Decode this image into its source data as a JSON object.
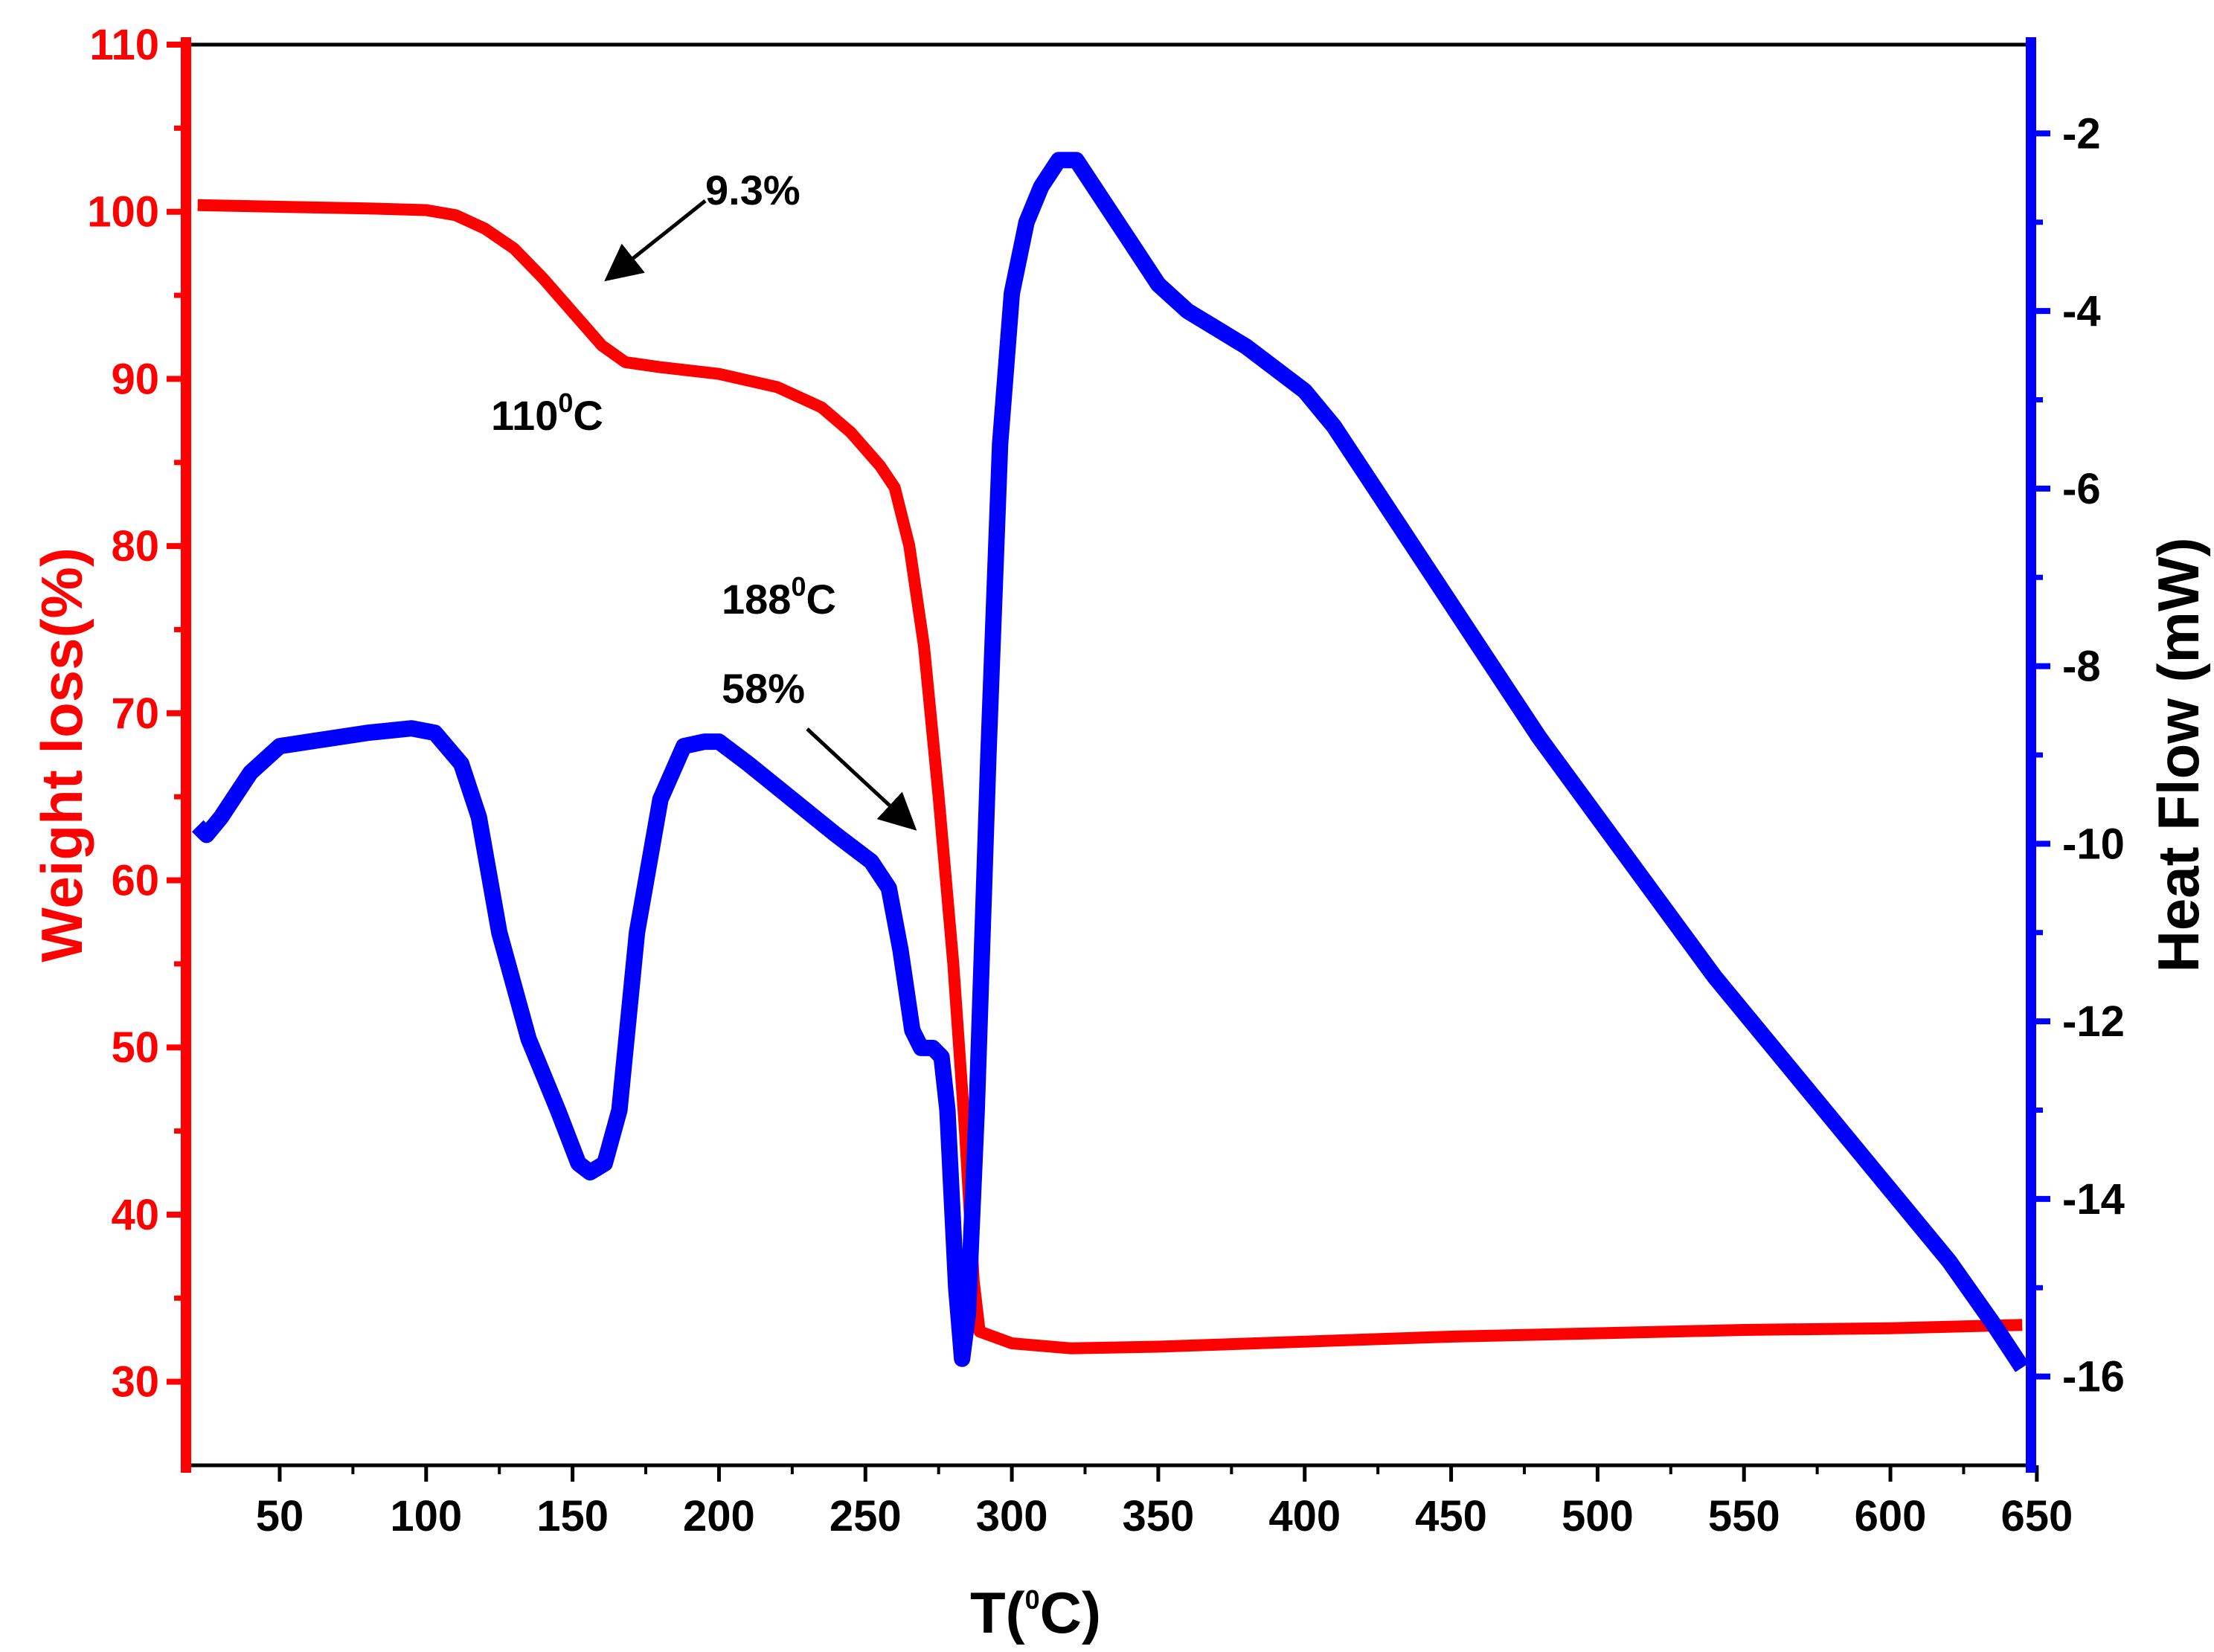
{
  "chart_data": {
    "type": "line",
    "title": "",
    "xlabel": {
      "prefix": "T(",
      "sup": "0",
      "suffix": "C)"
    },
    "y_left_label": "Weight loss(%)",
    "y_right_label": "Heat Flow (mW)",
    "xlim": [
      18,
      648
    ],
    "y_left_lim": [
      25,
      110
    ],
    "y_right_lim": [
      -17,
      -1
    ],
    "x_ticks": [
      50,
      100,
      150,
      200,
      250,
      300,
      350,
      400,
      450,
      500,
      550,
      600,
      650
    ],
    "y_left_ticks": [
      30,
      40,
      50,
      60,
      70,
      80,
      90,
      100,
      110
    ],
    "y_right_ticks": [
      -16,
      -14,
      -12,
      -10,
      -8,
      -6,
      -4,
      -2
    ],
    "colors": {
      "weight": "#ff0000",
      "heat": "#0000ff",
      "text": "#000000"
    },
    "series": [
      {
        "name": "Weight loss",
        "axis": "left",
        "color": "#ff0000",
        "points": [
          [
            22,
            100.4
          ],
          [
            50,
            100.3
          ],
          [
            80,
            100.2
          ],
          [
            100,
            100.1
          ],
          [
            110,
            99.8
          ],
          [
            120,
            99.0
          ],
          [
            130,
            97.8
          ],
          [
            140,
            96.0
          ],
          [
            150,
            94.0
          ],
          [
            160,
            92.0
          ],
          [
            168,
            91.0
          ],
          [
            180,
            90.7
          ],
          [
            200,
            90.3
          ],
          [
            220,
            89.5
          ],
          [
            235,
            88.3
          ],
          [
            245,
            86.8
          ],
          [
            255,
            84.8
          ],
          [
            260,
            83.5
          ],
          [
            265,
            80.0
          ],
          [
            270,
            74.0
          ],
          [
            275,
            65.0
          ],
          [
            280,
            55.0
          ],
          [
            284,
            45.0
          ],
          [
            287,
            36.0
          ],
          [
            289,
            33.0
          ],
          [
            300,
            32.3
          ],
          [
            320,
            32.0
          ],
          [
            350,
            32.1
          ],
          [
            400,
            32.4
          ],
          [
            450,
            32.7
          ],
          [
            500,
            32.9
          ],
          [
            550,
            33.1
          ],
          [
            600,
            33.2
          ],
          [
            645,
            33.4
          ]
        ]
      },
      {
        "name": "Heat Flow",
        "axis": "right",
        "color": "#0000ff",
        "points": [
          [
            22,
            -9.8
          ],
          [
            25,
            -9.9
          ],
          [
            30,
            -9.7
          ],
          [
            40,
            -9.2
          ],
          [
            50,
            -8.9
          ],
          [
            60,
            -8.85
          ],
          [
            80,
            -8.75
          ],
          [
            95,
            -8.7
          ],
          [
            103,
            -8.75
          ],
          [
            112,
            -9.1
          ],
          [
            118,
            -9.7
          ],
          [
            125,
            -11.0
          ],
          [
            135,
            -12.2
          ],
          [
            145,
            -13.0
          ],
          [
            152,
            -13.6
          ],
          [
            156,
            -13.7
          ],
          [
            161,
            -13.6
          ],
          [
            166,
            -13.0
          ],
          [
            172,
            -11.0
          ],
          [
            180,
            -9.5
          ],
          [
            188,
            -8.9
          ],
          [
            195,
            -8.85
          ],
          [
            200,
            -8.85
          ],
          [
            210,
            -9.1
          ],
          [
            225,
            -9.5
          ],
          [
            240,
            -9.9
          ],
          [
            252,
            -10.2
          ],
          [
            258,
            -10.5
          ],
          [
            262,
            -11.2
          ],
          [
            266,
            -12.1
          ],
          [
            269,
            -12.3
          ],
          [
            273,
            -12.3
          ],
          [
            276,
            -12.4
          ],
          [
            278,
            -13.0
          ],
          [
            281,
            -15.0
          ],
          [
            283,
            -15.8
          ],
          [
            285,
            -15.3
          ],
          [
            288,
            -13.0
          ],
          [
            292,
            -9.0
          ],
          [
            296,
            -5.5
          ],
          [
            300,
            -3.8
          ],
          [
            305,
            -3.0
          ],
          [
            310,
            -2.6
          ],
          [
            316,
            -2.3
          ],
          [
            322,
            -2.3
          ],
          [
            330,
            -2.7
          ],
          [
            340,
            -3.2
          ],
          [
            350,
            -3.7
          ],
          [
            360,
            -4.0
          ],
          [
            380,
            -4.4
          ],
          [
            400,
            -4.9
          ],
          [
            410,
            -5.3
          ],
          [
            420,
            -5.8
          ],
          [
            440,
            -6.8
          ],
          [
            460,
            -7.8
          ],
          [
            480,
            -8.8
          ],
          [
            500,
            -9.7
          ],
          [
            520,
            -10.6
          ],
          [
            540,
            -11.5
          ],
          [
            560,
            -12.3
          ],
          [
            580,
            -13.1
          ],
          [
            600,
            -13.9
          ],
          [
            620,
            -14.7
          ],
          [
            635,
            -15.4
          ],
          [
            645,
            -15.9
          ]
        ]
      }
    ],
    "annotations": [
      {
        "id": "pct1",
        "text": "9.3%"
      },
      {
        "id": "temp1",
        "text": "110",
        "sup": "0",
        "tail": "C"
      },
      {
        "id": "temp2",
        "text": "188",
        "sup": "0",
        "tail": "C"
      },
      {
        "id": "pct2",
        "text": "58%"
      }
    ]
  }
}
